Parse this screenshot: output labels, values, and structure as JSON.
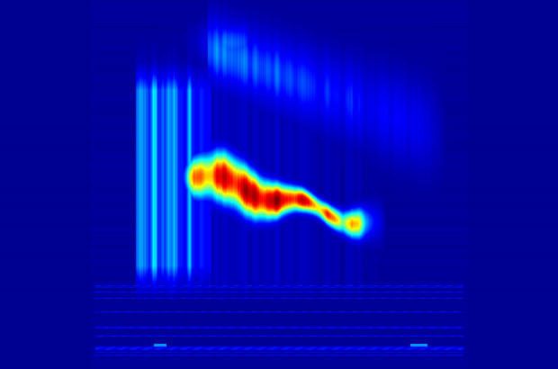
{
  "image": {
    "background_color": "#00008f",
    "colormap": {
      "name": "jet",
      "stops": [
        "#00008f",
        "#0000ff",
        "#00ffff",
        "#ffff00",
        "#ff0000",
        "#800000"
      ]
    }
  }
}
